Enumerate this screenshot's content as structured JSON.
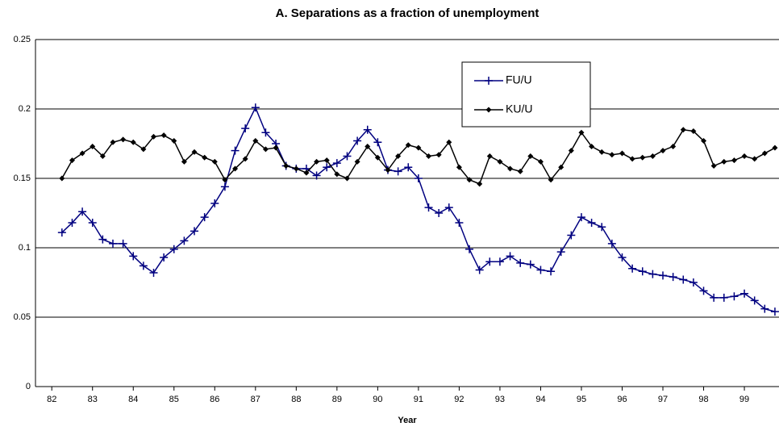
{
  "chart_data": {
    "type": "line",
    "title": "A. Separations as a fraction of unemployment",
    "x_label": "Year",
    "x": [
      82.25,
      82.5,
      82.75,
      83,
      83.25,
      83.5,
      83.75,
      84,
      84.25,
      84.5,
      84.75,
      85,
      85.25,
      85.5,
      85.75,
      86,
      86.25,
      86.5,
      86.75,
      87,
      87.25,
      87.5,
      87.75,
      88,
      88.25,
      88.5,
      88.75,
      89,
      89.25,
      89.5,
      89.75,
      90,
      90.25,
      90.5,
      90.75,
      91,
      91.25,
      91.5,
      91.75,
      92,
      92.25,
      92.5,
      92.75,
      93,
      93.25,
      93.5,
      93.75,
      94,
      94.25,
      94.5,
      94.75,
      95,
      95.25,
      95.5,
      95.75,
      96,
      96.25,
      96.5,
      96.75,
      97,
      97.25,
      97.5,
      97.75,
      98,
      98.25,
      98.5,
      98.75,
      99,
      99.25,
      99.5,
      99.75
    ],
    "series": [
      {
        "name": "FU/U",
        "color": "#000080",
        "marker": "plus",
        "values": [
          0.111,
          0.118,
          0.126,
          0.118,
          0.106,
          0.103,
          0.103,
          0.094,
          0.087,
          0.082,
          0.093,
          0.099,
          0.105,
          0.112,
          0.122,
          0.132,
          0.144,
          0.17,
          0.186,
          0.201,
          0.183,
          0.175,
          0.159,
          0.157,
          0.157,
          0.152,
          0.158,
          0.161,
          0.166,
          0.177,
          0.185,
          0.176,
          0.156,
          0.155,
          0.158,
          0.15,
          0.129,
          0.125,
          0.129,
          0.118,
          0.099,
          0.084,
          0.09,
          0.09,
          0.094,
          0.089,
          0.088,
          0.084,
          0.083,
          0.097,
          0.109,
          0.122,
          0.118,
          0.115,
          0.103,
          0.093,
          0.085,
          0.083,
          0.081,
          0.08,
          0.079,
          0.077,
          0.075,
          0.069,
          0.064,
          0.064,
          0.065,
          0.067,
          0.062,
          0.056,
          0.054
        ]
      },
      {
        "name": "KU/U",
        "color": "#000000",
        "marker": "diamond",
        "values": [
          0.15,
          0.163,
          0.168,
          0.173,
          0.166,
          0.176,
          0.178,
          0.176,
          0.171,
          0.18,
          0.181,
          0.177,
          0.162,
          0.169,
          0.165,
          0.162,
          0.149,
          0.157,
          0.164,
          0.177,
          0.171,
          0.172,
          0.159,
          0.157,
          0.154,
          0.162,
          0.163,
          0.153,
          0.15,
          0.162,
          0.173,
          0.165,
          0.156,
          0.166,
          0.174,
          0.172,
          0.166,
          0.167,
          0.176,
          0.158,
          0.149,
          0.146,
          0.166,
          0.162,
          0.157,
          0.155,
          0.166,
          0.162,
          0.149,
          0.158,
          0.17,
          0.183,
          0.173,
          0.169,
          0.167,
          0.168,
          0.164,
          0.165,
          0.166,
          0.17,
          0.173,
          0.185,
          0.184,
          0.177,
          0.159,
          0.162,
          0.163,
          0.166,
          0.164,
          0.168,
          0.172
        ]
      }
    ],
    "xlim": [
      81.6,
      99.85
    ],
    "xticks": [
      82,
      83,
      84,
      85,
      86,
      87,
      88,
      89,
      90,
      91,
      92,
      93,
      94,
      95,
      96,
      97,
      98,
      99
    ],
    "ylim": [
      0,
      0.25
    ],
    "yticks": [
      0,
      0.05,
      0.1,
      0.15,
      0.2,
      0.25
    ],
    "grid": true
  }
}
